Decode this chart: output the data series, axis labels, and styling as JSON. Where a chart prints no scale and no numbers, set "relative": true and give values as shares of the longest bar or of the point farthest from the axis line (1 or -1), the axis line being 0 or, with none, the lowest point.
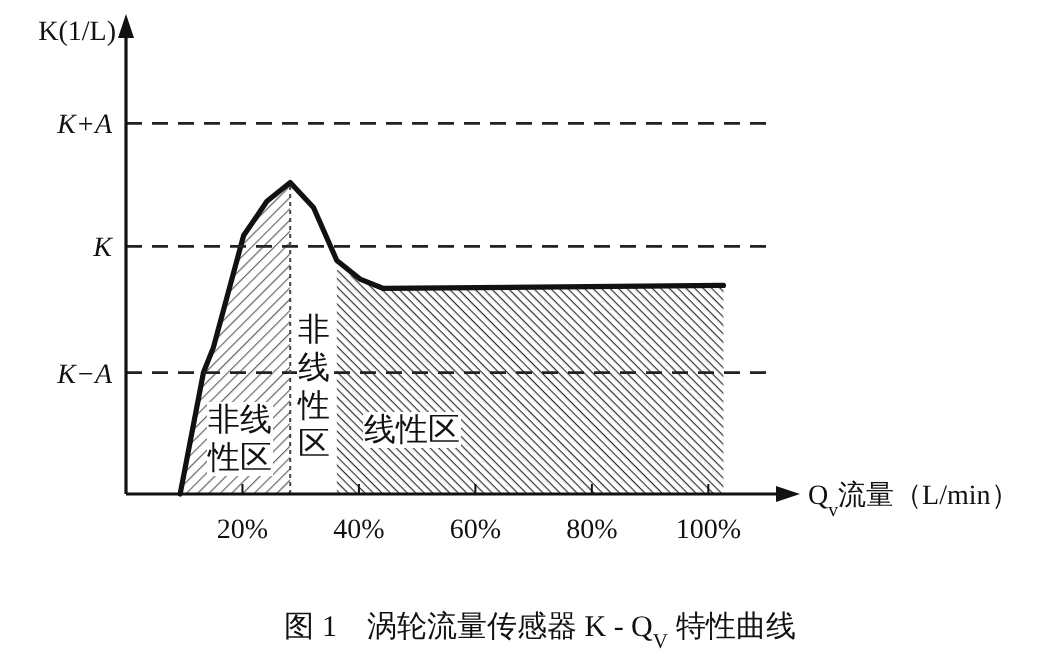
{
  "chart_data": {
    "type": "line",
    "relative": true,
    "ylabel": "K(1/L)",
    "xlabel": "Q$_{v}$流量（L/min）",
    "xlim": [
      0,
      113
    ],
    "xticks": [
      {
        "value": 20,
        "label": "20%"
      },
      {
        "value": 40,
        "label": "40%"
      },
      {
        "value": 60,
        "label": "60%"
      },
      {
        "value": 80,
        "label": "80%"
      },
      {
        "value": 100,
        "label": "100%"
      }
    ],
    "series": [
      {
        "type": "area",
        "color": "#666666",
        "x": [
          9.3,
          13.3,
          15,
          20.2,
          24.2,
          28.2
        ],
        "values": [
          0,
          0.39,
          0.47,
          0.83,
          0.94,
          1.0
        ]
      },
      {
        "type": "area",
        "color": "#333333",
        "x": [
          36.2,
          40.2,
          44.2,
          102.6
        ],
        "values": [
          0.72,
          0.69,
          0.66,
          0.67
        ]
      },
      {
        "type": "line",
        "color": "#111111",
        "x": [
          9.3,
          13.3,
          15,
          20.2,
          24.2,
          28.2,
          32.2,
          36.2,
          40.2,
          44.2,
          102.6
        ],
        "values": [
          0,
          0.39,
          0.47,
          0.83,
          0.94,
          1.0,
          0.92,
          0.75,
          0.69,
          0.66,
          0.67
        ]
      }
    ],
    "ref_lines": [
      {
        "axis": "y",
        "value": 1.19,
        "label": "K+A",
        "color": "#222222",
        "line_style": "dashed"
      },
      {
        "axis": "y",
        "value": 0.795,
        "label": "K",
        "color": "#222222",
        "line_style": "dashed"
      },
      {
        "axis": "y",
        "value": 0.39,
        "label": "K−A",
        "color": "#222222",
        "line_style": "dashed"
      },
      {
        "axis": "x",
        "value": 28.2,
        "label": null,
        "color": "#444444",
        "line_style": "dotted"
      }
    ],
    "annotations": [
      "非线性区",
      "非线性区",
      "线性区",
      "图 1　涡轮流量传感器 K - Q$_{V}$ 特性曲线"
    ]
  }
}
